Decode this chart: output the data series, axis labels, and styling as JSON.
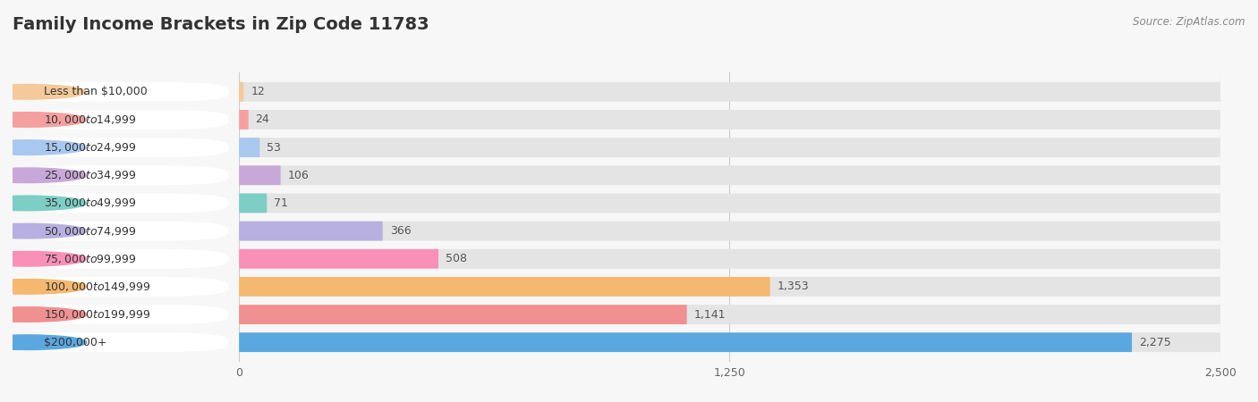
{
  "title": "Family Income Brackets in Zip Code 11783",
  "source": "Source: ZipAtlas.com",
  "categories": [
    "Less than $10,000",
    "$10,000 to $14,999",
    "$15,000 to $24,999",
    "$25,000 to $34,999",
    "$35,000 to $49,999",
    "$50,000 to $74,999",
    "$75,000 to $99,999",
    "$100,000 to $149,999",
    "$150,000 to $199,999",
    "$200,000+"
  ],
  "values": [
    12,
    24,
    53,
    106,
    71,
    366,
    508,
    1353,
    1141,
    2275
  ],
  "bar_colors": [
    "#F5C99A",
    "#F5A0A0",
    "#A8C8F0",
    "#C8A8D8",
    "#7DCEC4",
    "#B8B0E0",
    "#F890B8",
    "#F5B870",
    "#F09090",
    "#5BA8E0"
  ],
  "bg_color": "#f7f7f7",
  "bar_bg_color": "#e4e4e4",
  "label_bg_color": "#ffffff",
  "xlim": [
    0,
    2500
  ],
  "xticks": [
    0,
    1250,
    2500
  ],
  "title_fontsize": 14,
  "label_fontsize": 9,
  "value_fontsize": 9
}
